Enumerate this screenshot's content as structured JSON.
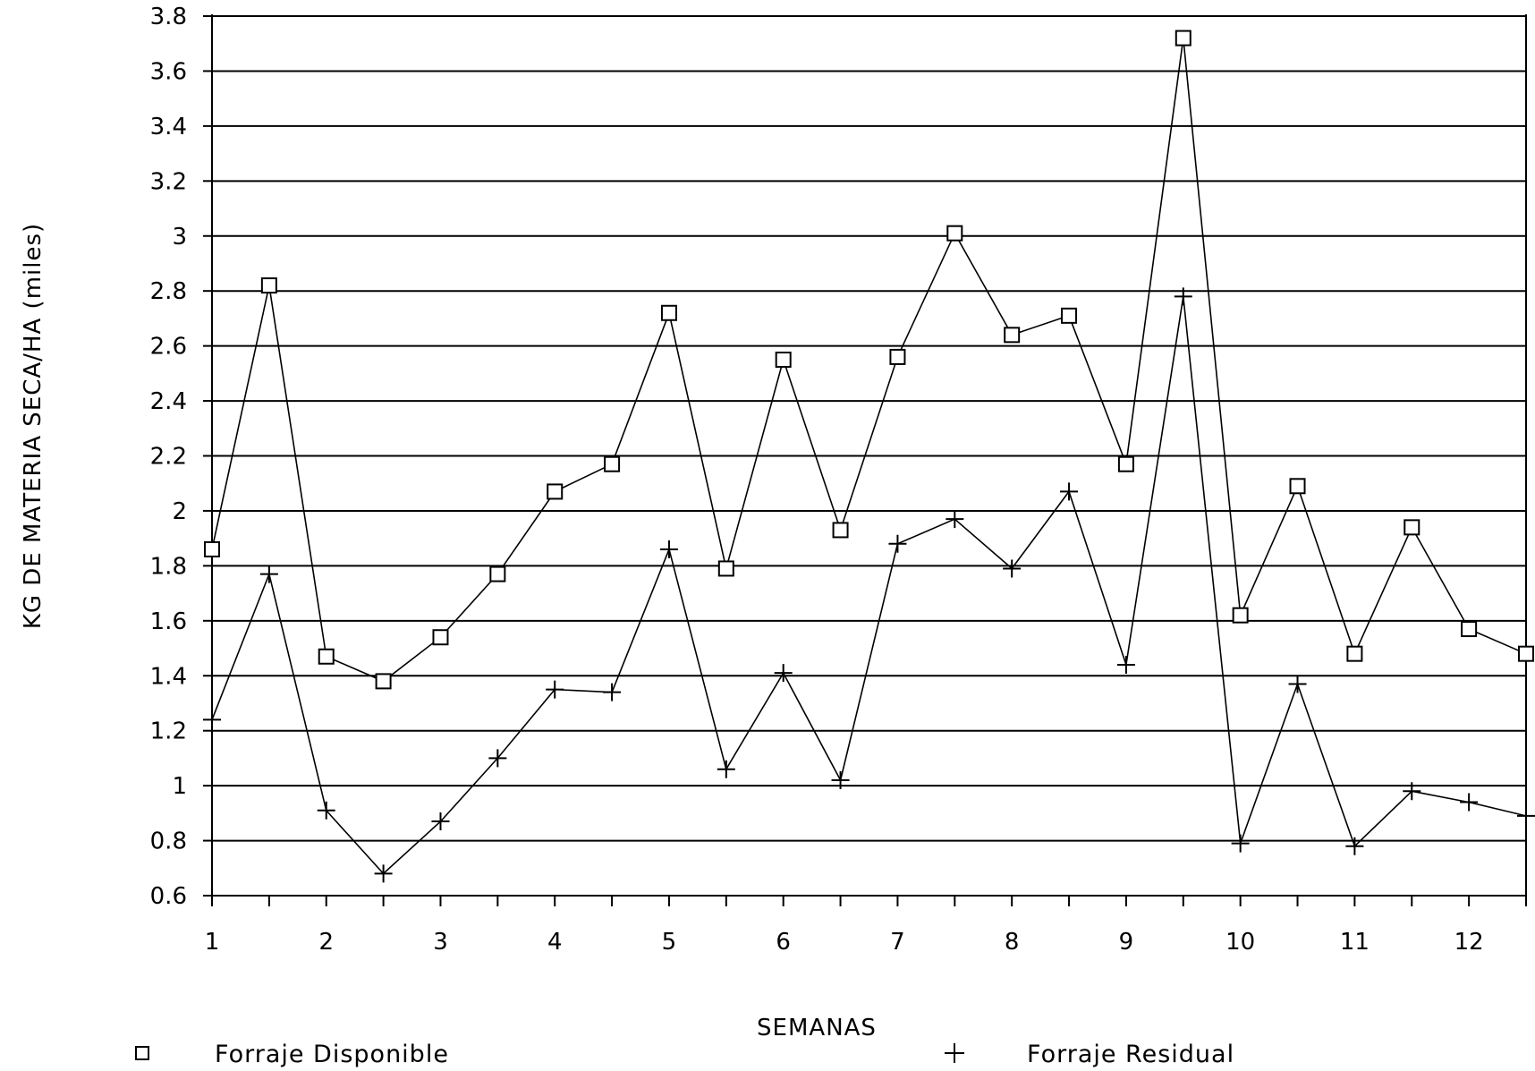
{
  "chart_data": {
    "type": "line",
    "xlabel": "SEMANAS",
    "ylabel": "KG DE MATERIA SECA/HA (miles)",
    "ylim": [
      0.6,
      3.8
    ],
    "xlim": [
      1,
      12.5
    ],
    "grid": true,
    "legend_placement": "bottom",
    "x_ticks": [
      "1",
      "2",
      "3",
      "4",
      "5",
      "6",
      "7",
      "8",
      "9",
      "10",
      "11",
      "12"
    ],
    "y_ticks": [
      "0.6",
      "0.8",
      "1",
      "1.2",
      "1.4",
      "1.6",
      "1.8",
      "2",
      "2.2",
      "2.4",
      "2.6",
      "2.8",
      "3",
      "3.2",
      "3.4",
      "3.6",
      "3.8"
    ],
    "x": [
      1,
      1.5,
      2,
      2.5,
      3,
      3.5,
      4,
      4.5,
      5,
      5.5,
      6,
      6.5,
      7,
      7.5,
      8,
      8.5,
      9,
      9.5,
      10,
      10.5,
      11,
      11.5,
      12,
      12.5
    ],
    "series": [
      {
        "name": "Forraje Disponible",
        "marker": "square",
        "values": [
          1.86,
          2.82,
          1.47,
          1.38,
          1.54,
          1.77,
          2.07,
          2.17,
          2.72,
          1.79,
          2.55,
          1.93,
          2.56,
          3.01,
          2.64,
          2.71,
          2.17,
          3.72,
          1.62,
          2.09,
          1.48,
          1.94,
          1.57,
          1.48
        ]
      },
      {
        "name": "Forraje Residual",
        "marker": "plus",
        "values": [
          1.24,
          1.77,
          0.91,
          0.68,
          0.87,
          1.1,
          1.35,
          1.34,
          1.86,
          1.06,
          1.41,
          1.02,
          1.88,
          1.97,
          1.79,
          2.07,
          1.44,
          2.78,
          0.79,
          1.37,
          0.78,
          0.98,
          0.94,
          0.89
        ]
      }
    ]
  }
}
